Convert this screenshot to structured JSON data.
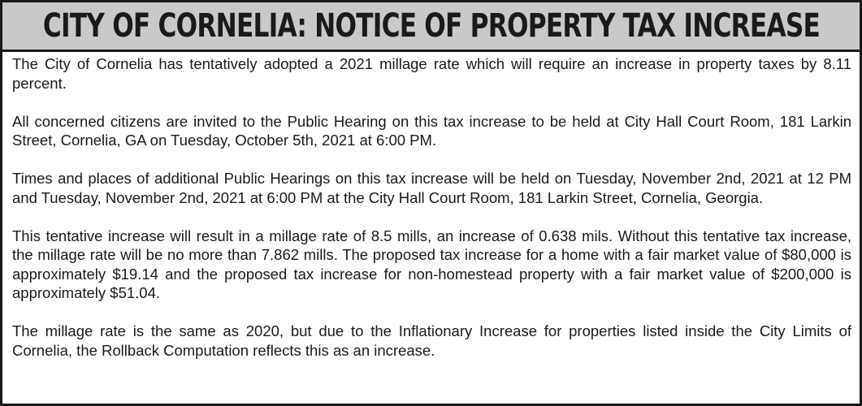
{
  "notice": {
    "title": "City of Cornelia: Notice of Property Tax Increase",
    "paragraphs": [
      "The City of Cornelia has tentatively adopted a 2021 millage rate which will require an increase in property taxes by 8.11 percent.",
      "All concerned citizens are invited to the Public Hearing on this tax increase to be held at City Hall Court Room, 181 Larkin Street, Cornelia, GA on Tuesday, October 5th, 2021 at 6:00 PM.",
      "Times and places of additional Public Hearings on this tax increase will be held on Tuesday, November 2nd, 2021 at 12 PM and Tuesday, November 2nd, 2021 at 6:00 PM at the City Hall Court Room, 181 Larkin Street, Cornelia, Georgia.",
      "This tentative increase will result in a millage rate of 8.5 mills, an increase of 0.638 mils. Without this tentative tax increase, the millage rate will be no more than 7.862 mills. The proposed tax increase for a home with a fair market value of $80,000 is approximately $19.14 and the proposed tax increase for non-homestead property with a fair market value of $200,000 is approximately $51.04.",
      "The millage rate is the same as 2020, but due to the Inflationary Increase for properties listed inside the City Limits of Cornelia, the Rollback Computation reflects this as an increase."
    ]
  }
}
